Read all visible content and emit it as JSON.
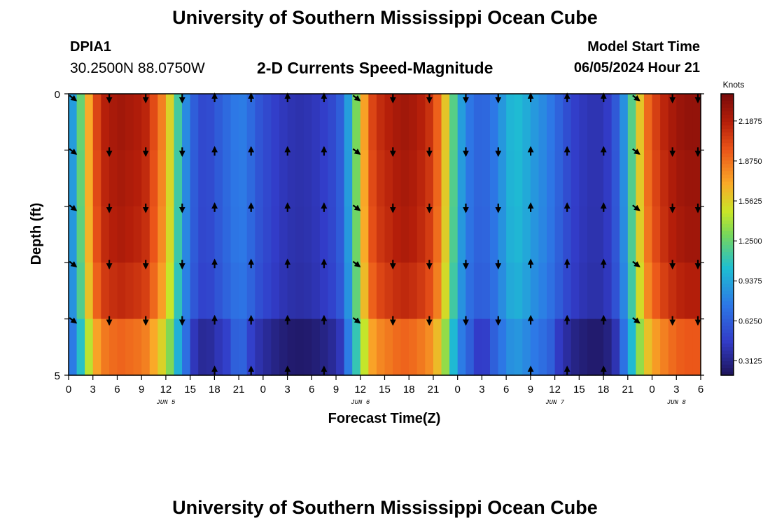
{
  "header": {
    "institution": "University of Southern Mississippi Ocean Cube",
    "station_id": "DPIA1",
    "coordinates": "30.2500N  88.0750W",
    "plot_title": "2-D Currents Speed-Magnitude",
    "model_start_label": "Model Start Time",
    "model_start_value": "06/05/2024 Hour 21"
  },
  "footer": {
    "institution": "University of Southern Mississippi Ocean Cube"
  },
  "chart_data": {
    "type": "heatmap",
    "title": "2-D Currents Speed-Magnitude",
    "xlabel": "Forecast Time(Z)",
    "ylabel": "Depth (ft)",
    "x_tick_labels": [
      "0",
      "3",
      "6",
      "9",
      "12",
      "15",
      "18",
      "21",
      "0",
      "3",
      "6",
      "9",
      "12",
      "15",
      "18",
      "21",
      "0",
      "3",
      "6",
      "9",
      "12",
      "15",
      "18",
      "21",
      "0",
      "3",
      "6"
    ],
    "y_tick_labels": [
      "0",
      "5"
    ],
    "ylim": [
      0,
      5
    ],
    "date_labels": [
      {
        "text": "JUN 5",
        "at_hour": 12
      },
      {
        "text": "JUN 6",
        "at_hour": 36
      },
      {
        "text": "JUN 7",
        "at_hour": 60
      },
      {
        "text": "JUN 8",
        "at_hour": 75
      }
    ],
    "colorbar": {
      "unit": "Knots",
      "min": 0.2,
      "max": 2.4,
      "ticks": [
        "2.1875",
        "1.8750",
        "1.5625",
        "1.2500",
        "0.9375",
        "0.6250",
        "0.3125"
      ],
      "tick_values": [
        2.1875,
        1.875,
        1.5625,
        1.25,
        0.9375,
        0.625,
        0.3125
      ]
    },
    "hours": 78,
    "depth_levels": 5,
    "speed_profile_knots": [
      [
        0,
        0.8
      ],
      [
        1,
        1.0
      ],
      [
        2,
        1.5
      ],
      [
        3,
        1.9
      ],
      [
        4,
        2.15
      ],
      [
        5,
        2.2
      ],
      [
        6,
        2.25
      ],
      [
        7,
        2.25
      ],
      [
        8,
        2.2
      ],
      [
        9,
        2.2
      ],
      [
        10,
        2.1
      ],
      [
        11,
        1.9
      ],
      [
        12,
        1.75
      ],
      [
        13,
        1.35
      ],
      [
        14,
        0.95
      ],
      [
        15,
        0.7
      ],
      [
        16,
        0.55
      ],
      [
        17,
        0.5
      ],
      [
        18,
        0.58
      ],
      [
        19,
        0.65
      ],
      [
        20,
        0.72
      ],
      [
        21,
        0.78
      ],
      [
        22,
        0.75
      ],
      [
        23,
        0.62
      ],
      [
        24,
        0.55
      ],
      [
        25,
        0.5
      ],
      [
        26,
        0.45
      ],
      [
        27,
        0.42
      ],
      [
        28,
        0.4
      ],
      [
        29,
        0.4
      ],
      [
        30,
        0.42
      ],
      [
        31,
        0.45
      ],
      [
        32,
        0.5
      ],
      [
        33,
        0.55
      ],
      [
        34,
        0.7
      ],
      [
        35,
        1.1
      ],
      [
        36,
        1.5
      ],
      [
        37,
        1.95
      ],
      [
        38,
        2.1
      ],
      [
        39,
        2.15
      ],
      [
        40,
        2.2
      ],
      [
        41,
        2.25
      ],
      [
        42,
        2.25
      ],
      [
        43,
        2.2
      ],
      [
        44,
        2.15
      ],
      [
        45,
        2.05
      ],
      [
        46,
        1.8
      ],
      [
        47,
        1.4
      ],
      [
        48,
        1.0
      ],
      [
        49,
        0.8
      ],
      [
        50,
        0.68
      ],
      [
        51,
        0.65
      ],
      [
        52,
        0.7
      ],
      [
        53,
        0.8
      ],
      [
        54,
        0.95
      ],
      [
        55,
        1.05
      ],
      [
        56,
        1.0
      ],
      [
        57,
        0.92
      ],
      [
        58,
        0.85
      ],
      [
        59,
        0.8
      ],
      [
        60,
        0.7
      ],
      [
        61,
        0.6
      ],
      [
        62,
        0.5
      ],
      [
        63,
        0.45
      ],
      [
        64,
        0.42
      ],
      [
        65,
        0.4
      ],
      [
        66,
        0.42
      ],
      [
        67,
        0.5
      ],
      [
        68,
        0.7
      ],
      [
        69,
        1.0
      ],
      [
        70,
        1.4
      ],
      [
        71,
        1.8
      ],
      [
        72,
        2.0
      ],
      [
        73,
        2.1
      ],
      [
        74,
        2.2
      ],
      [
        75,
        2.25
      ],
      [
        76,
        2.3
      ],
      [
        77,
        2.3
      ],
      [
        78,
        2.3
      ]
    ],
    "depth_factors": [
      1.0,
      0.99,
      0.98,
      0.95,
      0.85
    ],
    "vectors": [
      {
        "hour": 0,
        "dir": "down-right"
      },
      {
        "hour": 4.5,
        "dir": "down"
      },
      {
        "hour": 9,
        "dir": "down"
      },
      {
        "hour": 13.5,
        "dir": "down"
      },
      {
        "hour": 17.5,
        "dir": "up"
      },
      {
        "hour": 22,
        "dir": "up"
      },
      {
        "hour": 26.5,
        "dir": "up"
      },
      {
        "hour": 31,
        "dir": "up"
      },
      {
        "hour": 35,
        "dir": "down-right"
      },
      {
        "hour": 39.5,
        "dir": "down"
      },
      {
        "hour": 44,
        "dir": "down"
      },
      {
        "hour": 48.5,
        "dir": "down"
      },
      {
        "hour": 52.5,
        "dir": "down"
      },
      {
        "hour": 56.5,
        "dir": "up"
      },
      {
        "hour": 61,
        "dir": "up"
      },
      {
        "hour": 65.5,
        "dir": "up"
      },
      {
        "hour": 69.5,
        "dir": "down-right"
      },
      {
        "hour": 74,
        "dir": "down"
      },
      {
        "hour": 78,
        "dir": "down"
      }
    ]
  }
}
